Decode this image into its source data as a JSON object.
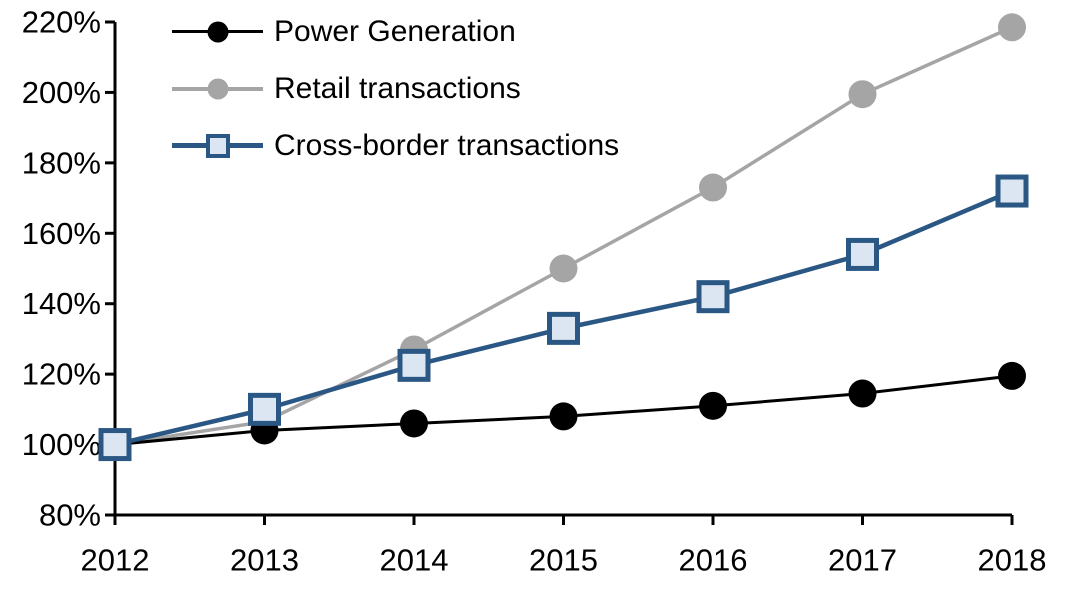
{
  "chart_data": {
    "type": "line",
    "title": "",
    "xlabel": "",
    "ylabel": "",
    "grid": false,
    "legend_position": "top-left",
    "categories": [
      "2012",
      "2013",
      "2014",
      "2015",
      "2016",
      "2017",
      "2018"
    ],
    "ylim": [
      80,
      220
    ],
    "y_ticks": [
      {
        "value": 220,
        "label": "220%"
      },
      {
        "value": 200,
        "label": "200%"
      },
      {
        "value": 180,
        "label": "180%"
      },
      {
        "value": 160,
        "label": "160%"
      },
      {
        "value": 140,
        "label": "140%"
      },
      {
        "value": 120,
        "label": "120%"
      },
      {
        "value": 100,
        "label": "100%"
      },
      {
        "value": 80,
        "label": "80%"
      }
    ],
    "series": [
      {
        "name": "Power Generation",
        "marker": "circle",
        "color": "#000000",
        "marker_fill": "#000000",
        "line_width": 3,
        "z": 2,
        "values": [
          100,
          104,
          106,
          108,
          111,
          114.5,
          119.5
        ]
      },
      {
        "name": "Retail transactions",
        "marker": "circle",
        "color": "#A5A5A5",
        "marker_fill": "#A5A5A5",
        "line_width": 3.5,
        "z": 1,
        "values": [
          100,
          106.5,
          127,
          150,
          173,
          199.5,
          218.5
        ]
      },
      {
        "name": "Cross-border transactions",
        "marker": "square",
        "color": "#2A5783",
        "marker_fill": "#DCE6F2",
        "line_width": 4.5,
        "z": 3,
        "values": [
          100,
          110,
          122.5,
          133,
          142,
          154,
          172
        ]
      }
    ]
  }
}
